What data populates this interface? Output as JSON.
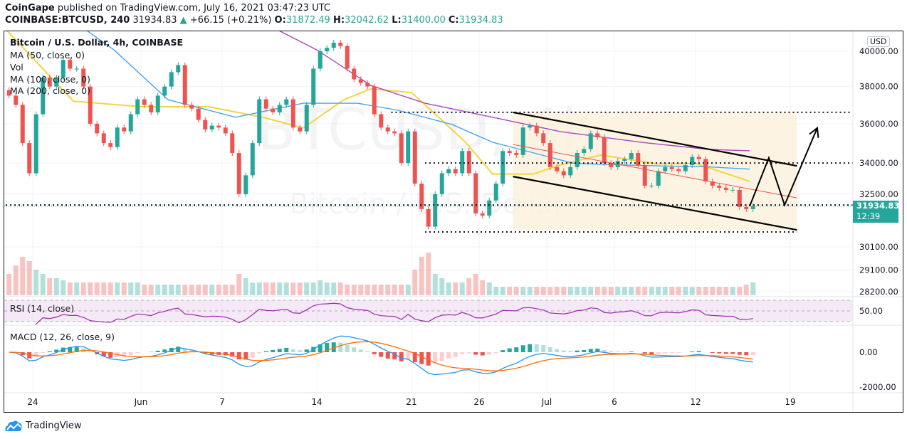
{
  "header": {
    "publisher": "CoinGape",
    "published_text": "published on TradingView.com, July 16, 2021 03:47:23 UTC",
    "symbol": "COINBASE:BTCUSD, 240",
    "last": "31934.83",
    "change": "+66.15 (+0.21%)",
    "o_label": "O:",
    "o": "31872.49",
    "h_label": "H:",
    "h": "32042.62",
    "l_label": "L:",
    "l": "31400.00",
    "c_label": "C:",
    "c": "31934.83"
  },
  "legend": {
    "title": "Bitcoin / U.S. Dollar, 4h, COINBASE",
    "ma50": "MA (50, close, 0)",
    "vol": "Vol",
    "ma100": "MA (100, close, 0)",
    "ma200": "MA (200, close, 0)",
    "rsi": "RSI (14, close)",
    "macd": "MACD (12, 26, close, 9)"
  },
  "watermark": {
    "symbol": "BTCUSD, 4h",
    "name": "Bitcoin / U.S. Dollar"
  },
  "price_axis": {
    "currency": "USD",
    "last_price": "31934.83",
    "countdown": "12:39"
  },
  "brand": {
    "name": "TradingView"
  },
  "colors": {
    "up": "#26a69a",
    "down": "#ef5350",
    "ma50": "#f5d43a",
    "ma100": "#42a5f5",
    "ma200": "#ab47bc",
    "rsi": "#9c27b0",
    "macd": "#2196f3",
    "signal": "#ff6d00",
    "channel_fill": "#fdf0dc",
    "channel_mid": "#ef5350"
  },
  "chart_data": {
    "type": "candlestick",
    "scale": "log",
    "grid": true,
    "interval_shown": "12h approx",
    "start": "2021-05-22T00:00",
    "ylim": [
      27900,
      42500
    ],
    "y_ticks": [
      40000,
      38000,
      36000,
      34000,
      32500,
      30100,
      29100,
      28200
    ],
    "y_tick_labels": [
      "40000.00",
      "38000.00",
      "36000.00",
      "34000.00",
      "32500.00",
      "30100.00",
      "29100.00",
      "28200.00"
    ],
    "x_ticks": [
      {
        "date": "2021-05-24",
        "label": "24"
      },
      {
        "date": "2021-06-01",
        "label": "Jun"
      },
      {
        "date": "2021-06-07",
        "label": "7"
      },
      {
        "date": "2021-06-14",
        "label": "14"
      },
      {
        "date": "2021-06-21",
        "label": "21"
      },
      {
        "date": "2021-06-26",
        "label": "26"
      },
      {
        "date": "2021-07-01",
        "label": "Jul"
      },
      {
        "date": "2021-07-06",
        "label": "6"
      },
      {
        "date": "2021-07-12",
        "label": "12"
      },
      {
        "date": "2021-07-19",
        "label": "19"
      }
    ],
    "first_open": 37800,
    "close": [
      37500,
      37000,
      35000,
      33500,
      36500,
      38500,
      38000,
      38500,
      39500,
      39000,
      39000,
      38000,
      36000,
      35500,
      35000,
      34800,
      35800,
      35600,
      36500,
      37300,
      37000,
      36600,
      37500,
      38000,
      38800,
      39200,
      37000,
      36800,
      36200,
      35700,
      35900,
      35800,
      35500,
      34500,
      32500,
      33400,
      35000,
      37300,
      36800,
      36600,
      37000,
      37300,
      35800,
      35600,
      37000,
      39000,
      40000,
      40200,
      40500,
      40300,
      39000,
      38400,
      38200,
      38000,
      36500,
      35800,
      35600,
      35500,
      34000,
      35600,
      33000,
      31800,
      31000,
      32500,
      33500,
      33700,
      33500,
      34600,
      33500,
      31600,
      31500,
      32200,
      33000,
      34600,
      34500,
      34400,
      35800,
      35900,
      35500,
      35000,
      33800,
      33600,
      33400,
      33800,
      34500,
      34700,
      35500,
      35300,
      34000,
      33800,
      34100,
      34200,
      34500,
      33900,
      32900,
      32900,
      33600,
      33800,
      33700,
      33600,
      33900,
      34300,
      34200,
      33100,
      32900,
      32800,
      32700,
      32700,
      31900,
      31800,
      31934.83
    ],
    "volume_relative": [
      0.5,
      0.7,
      0.9,
      0.8,
      0.6,
      0.5,
      0.4,
      0.4,
      0.35,
      0.3,
      0.3,
      0.3,
      0.3,
      0.3,
      0.3,
      0.3,
      0.3,
      0.3,
      0.3,
      0.3,
      0.25,
      0.25,
      0.25,
      0.25,
      0.25,
      0.25,
      0.25,
      0.25,
      0.25,
      0.25,
      0.25,
      0.25,
      0.25,
      0.25,
      0.5,
      0.4,
      0.3,
      0.3,
      0.3,
      0.3,
      0.3,
      0.3,
      0.3,
      0.3,
      0.3,
      0.3,
      0.35,
      0.3,
      0.3,
      0.3,
      0.25,
      0.25,
      0.25,
      0.25,
      0.25,
      0.25,
      0.25,
      0.25,
      0.25,
      0.25,
      0.6,
      0.9,
      1.0,
      0.5,
      0.4,
      0.3,
      0.3,
      0.3,
      0.4,
      0.5,
      0.35,
      0.3,
      0.2,
      0.2,
      0.2,
      0.2,
      0.2,
      0.2,
      0.2,
      0.2,
      0.2,
      0.2,
      0.2,
      0.2,
      0.2,
      0.2,
      0.2,
      0.2,
      0.2,
      0.2,
      0.2,
      0.2,
      0.2,
      0.2,
      0.2,
      0.2,
      0.2,
      0.2,
      0.2,
      0.2,
      0.2,
      0.2,
      0.2,
      0.2,
      0.2,
      0.2,
      0.2,
      0.2,
      0.2,
      0.25,
      0.3
    ],
    "moving_averages": [
      {
        "name": "MA (50, close, 0)",
        "color_key": "ma50",
        "points": [
          [
            "2021-05-22",
            41300
          ],
          [
            "2021-05-27",
            37200
          ],
          [
            "2021-06-01",
            36900
          ],
          [
            "2021-06-06",
            36900
          ],
          [
            "2021-06-10",
            36340
          ],
          [
            "2021-06-13",
            35780
          ],
          [
            "2021-06-16",
            37280
          ],
          [
            "2021-06-18",
            37870
          ],
          [
            "2021-06-21",
            37670
          ],
          [
            "2021-06-23",
            36340
          ],
          [
            "2021-06-25",
            35040
          ],
          [
            "2021-06-27",
            33460
          ],
          [
            "2021-06-30",
            33460
          ],
          [
            "2021-07-02",
            33910
          ],
          [
            "2021-07-05",
            34400
          ],
          [
            "2021-07-09",
            33980
          ],
          [
            "2021-07-12",
            33980
          ],
          [
            "2021-07-16",
            33110
          ]
        ]
      },
      {
        "name": "MA (100, close, 0)",
        "color_key": "ma100",
        "points": [
          [
            "2021-05-27",
            41800
          ],
          [
            "2021-05-30",
            40080
          ],
          [
            "2021-06-03",
            37280
          ],
          [
            "2021-06-08",
            36340
          ],
          [
            "2021-06-13",
            37090
          ],
          [
            "2021-06-17",
            37090
          ],
          [
            "2021-06-20",
            36710
          ],
          [
            "2021-06-24",
            35960
          ],
          [
            "2021-06-27",
            35040
          ],
          [
            "2021-06-30",
            34510
          ],
          [
            "2021-07-03",
            33980
          ],
          [
            "2021-07-08",
            33880
          ],
          [
            "2021-07-13",
            33810
          ],
          [
            "2021-07-16",
            33700
          ]
        ]
      },
      {
        "name": "MA (200, close, 0)",
        "color_key": "ma200",
        "points": [
          [
            "2021-06-10",
            42300
          ],
          [
            "2021-06-11",
            41300
          ],
          [
            "2021-06-14",
            40080
          ],
          [
            "2021-06-18",
            38060
          ],
          [
            "2021-06-22",
            37090
          ],
          [
            "2021-06-27",
            36340
          ],
          [
            "2021-07-02",
            35590
          ],
          [
            "2021-07-08",
            35040
          ],
          [
            "2021-07-13",
            34680
          ],
          [
            "2021-07-16",
            34610
          ]
        ]
      }
    ],
    "drawings": {
      "channel_upper": [
        [
          "2021-06-28T12:00",
          36600
        ],
        [
          "2021-07-19T12:00",
          33860
        ]
      ],
      "channel_lower": [
        [
          "2021-06-28T12:00",
          33340
        ],
        [
          "2021-07-19T12:00",
          30850
        ]
      ],
      "channel_mid": [
        [
          "2021-06-28T12:00",
          34930
        ],
        [
          "2021-07-19T12:00",
          32320
        ]
      ],
      "levels": [
        {
          "price": 36600,
          "from": "2021-06-19T12:00"
        },
        {
          "price": 34000,
          "from": "2021-06-22T00:00"
        },
        {
          "price": 31990,
          "from": "2021-05-22T00:00"
        },
        {
          "price": 30760,
          "from": "2021-06-22T00:00",
          "to": "2021-07-19T12:00"
        }
      ],
      "projection_arrow": [
        [
          "2021-07-16T00:00",
          31930
        ],
        [
          "2021-07-17T10:00",
          34260
        ],
        [
          "2021-07-18T14:00",
          31990
        ],
        [
          "2021-07-21T00:00",
          35780
        ]
      ]
    },
    "rsi": {
      "period": 14,
      "band": [
        30,
        70
      ],
      "tick_labels": [
        "50.00"
      ]
    },
    "macd": {
      "fast": 12,
      "slow": 26,
      "signal": 9,
      "y_ticks": [
        0,
        -2000
      ],
      "tick_labels": [
        "0.00",
        "-2000.00"
      ]
    }
  }
}
